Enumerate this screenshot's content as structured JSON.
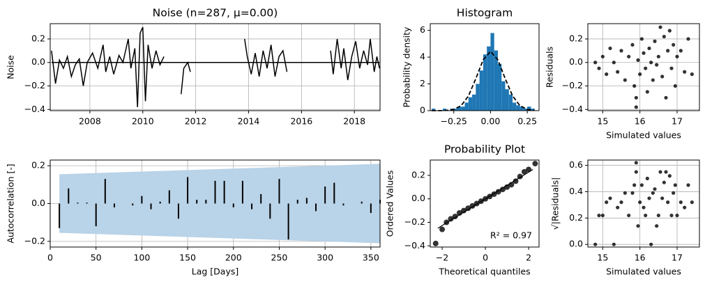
{
  "chart_data": [
    {
      "type": "line",
      "title": "Noise (n=287, μ=0.00)",
      "ylabel": "Noise",
      "color": "#000000",
      "grid": true,
      "xlim": [
        2006.5,
        2018.97
      ],
      "xticks": [
        2008,
        2010,
        2012,
        2014,
        2016,
        2018
      ],
      "ylim": [
        -0.41,
        0.33
      ],
      "yticks": [
        {
          "value": -0.4,
          "label": "−0.4"
        },
        {
          "value": -0.2,
          "label": "−0.2"
        },
        {
          "value": 0,
          "label": "0.0"
        },
        {
          "value": 0.2,
          "label": "0.2"
        }
      ],
      "x": [
        2006.55,
        2006.7,
        2006.85,
        2007.0,
        2007.15,
        2007.3,
        2007.45,
        2007.6,
        2007.75,
        2007.9,
        2008.1,
        2008.3,
        2008.5,
        2008.6,
        2008.75,
        2008.9,
        2009.1,
        2009.25,
        2009.45,
        2009.55,
        2009.7,
        2009.8,
        2009.9,
        2010.0,
        2010.1,
        2010.2,
        2010.35,
        2010.5,
        2010.65,
        2010.8,
        2011.1,
        2011.45,
        2011.55,
        2011.7,
        2011.8,
        2012.8,
        2013.85,
        2013.95,
        2014.1,
        2014.25,
        2014.4,
        2014.55,
        2014.7,
        2014.85,
        2015.0,
        2015.15,
        2015.3,
        2015.45,
        2016.3,
        2017.1,
        2017.2,
        2017.35,
        2017.5,
        2017.6,
        2017.75,
        2017.9,
        2018.05,
        2018.2,
        2018.35,
        2018.5,
        2018.6,
        2018.75,
        2018.85,
        2018.95
      ],
      "values": [
        0.1,
        -0.18,
        0.02,
        -0.05,
        0.05,
        -0.12,
        -0.02,
        0.03,
        -0.2,
        0.0,
        0.08,
        -0.05,
        0.15,
        -0.08,
        0.05,
        -0.1,
        0.06,
        0.0,
        0.2,
        -0.05,
        0.12,
        -0.38,
        0.25,
        0.3,
        -0.33,
        0.15,
        -0.05,
        0.1,
        -0.02,
        0.05,
        null,
        -0.27,
        -0.05,
        0.0,
        -0.08,
        null,
        0.2,
        0.05,
        -0.1,
        0.08,
        -0.12,
        0.1,
        -0.05,
        0.15,
        -0.12,
        0.05,
        0.1,
        -0.08,
        null,
        0.1,
        -0.1,
        0.2,
        -0.05,
        0.12,
        -0.15,
        0.05,
        0.18,
        -0.05,
        0.1,
        -0.02,
        0.2,
        -0.08,
        0.05,
        -0.05
      ]
    },
    {
      "type": "histogram",
      "title": "Histogram",
      "ylabel": "Probability density",
      "color": "#1f77b4",
      "curve_color": "#000000",
      "grid": false,
      "xlim": [
        -0.41,
        0.33
      ],
      "xticks": [
        {
          "value": -0.25,
          "label": "−0.25"
        },
        {
          "value": 0,
          "label": "0.00"
        },
        {
          "value": 0.25,
          "label": "0.25"
        }
      ],
      "ylim": [
        0,
        6.5
      ],
      "yticks": [
        0,
        2,
        4,
        6
      ],
      "bins": [
        -0.4,
        -0.375,
        -0.35,
        -0.325,
        -0.3,
        -0.275,
        -0.25,
        -0.225,
        -0.2,
        -0.175,
        -0.15,
        -0.125,
        -0.1,
        -0.075,
        -0.05,
        -0.025,
        0,
        0.025,
        0.05,
        0.075,
        0.1,
        0.125,
        0.15,
        0.175,
        0.2,
        0.225,
        0.25,
        0.275,
        0.3
      ],
      "values": [
        0.15,
        0,
        0,
        0.15,
        0,
        0.15,
        0.15,
        0.3,
        0.3,
        0.6,
        1.0,
        1.2,
        2.0,
        3.0,
        4.2,
        4.8,
        5.8,
        4.5,
        3.5,
        2.2,
        1.6,
        1.2,
        0.6,
        0.4,
        0.3,
        0.15,
        0.3,
        0.15
      ],
      "curve": {
        "x": [
          -0.4,
          -0.35,
          -0.3,
          -0.25,
          -0.2,
          -0.15,
          -0.1,
          -0.05,
          0,
          0.05,
          0.1,
          0.15,
          0.2,
          0.25,
          0.3
        ],
        "values": [
          0.0,
          0.0,
          0.02,
          0.09,
          0.37,
          1.1,
          2.39,
          3.8,
          4.43,
          3.8,
          2.39,
          1.1,
          0.37,
          0.09,
          0.02
        ]
      }
    },
    {
      "type": "scatter",
      "xlabel": "Simulated values",
      "ylabel": "Residuals",
      "color": "#000000",
      "grid": true,
      "xlim": [
        14.6,
        17.6
      ],
      "xticks": [
        15,
        16,
        17
      ],
      "ylim": [
        -0.41,
        0.33
      ],
      "yticks": [
        {
          "value": -0.4,
          "label": "−0.4"
        },
        {
          "value": -0.2,
          "label": "−0.2"
        },
        {
          "value": 0,
          "label": "0.0"
        },
        {
          "value": 0.2,
          "label": "0.2"
        }
      ],
      "x": [
        14.8,
        14.9,
        15.0,
        15.1,
        15.2,
        15.3,
        15.4,
        15.5,
        15.6,
        15.7,
        15.8,
        15.85,
        15.9,
        15.95,
        16.0,
        16.05,
        16.1,
        16.15,
        16.2,
        16.25,
        16.3,
        16.35,
        16.4,
        16.45,
        16.5,
        16.55,
        16.6,
        16.65,
        16.7,
        16.75,
        16.8,
        16.85,
        16.9,
        16.95,
        17.0,
        17.1,
        17.2,
        17.3,
        17.4,
        15.9
      ],
      "values": [
        0.0,
        -0.05,
        0.05,
        -0.1,
        0.12,
        0.0,
        -0.08,
        0.1,
        -0.15,
        0.05,
        0.15,
        -0.2,
        -0.38,
        0.02,
        -0.1,
        0.2,
        0.08,
        -0.05,
        -0.25,
        0.12,
        0.0,
        -0.15,
        0.18,
        -0.02,
        0.05,
        0.3,
        -0.12,
        0.22,
        -0.3,
        0.1,
        0.27,
        -0.05,
        0.15,
        -0.2,
        0.05,
        0.1,
        -0.08,
        0.2,
        -0.1,
        -0.3
      ]
    },
    {
      "type": "stem",
      "xlabel": "Lag [Days]",
      "ylabel": "Autocorrelation [-]",
      "color": "#000000",
      "band_color": "#b9d3e8",
      "grid": true,
      "xlim": [
        0,
        360
      ],
      "xticks": [
        0,
        50,
        100,
        150,
        200,
        250,
        300,
        350
      ],
      "ylim": [
        -0.23,
        0.23
      ],
      "yticks": [
        {
          "value": -0.2,
          "label": "−0.2"
        },
        {
          "value": 0,
          "label": "0.0"
        },
        {
          "value": 0.2,
          "label": "0.2"
        }
      ],
      "x": [
        10,
        20,
        30,
        40,
        50,
        60,
        70,
        80,
        90,
        100,
        110,
        120,
        130,
        140,
        150,
        160,
        170,
        180,
        190,
        200,
        210,
        220,
        230,
        240,
        250,
        260,
        270,
        280,
        290,
        300,
        310,
        320,
        330,
        340,
        350,
        360
      ],
      "values": [
        -0.13,
        0.08,
        0.005,
        0.005,
        -0.12,
        0.13,
        -0.02,
        0.0,
        -0.01,
        0.04,
        -0.03,
        0.01,
        0.07,
        -0.08,
        0.14,
        0.02,
        0.02,
        0.12,
        0.12,
        -0.02,
        0.12,
        -0.03,
        0.05,
        -0.08,
        0.13,
        -0.19,
        0.02,
        0.03,
        -0.04,
        0.09,
        0.11,
        -0.01,
        0.0,
        0.01,
        -0.05,
        0.02
      ],
      "band": {
        "x": [
          10,
          360
        ],
        "upper": [
          0.155,
          0.21
        ],
        "lower": [
          -0.155,
          -0.21
        ]
      }
    },
    {
      "type": "probplot",
      "title": "Probability Plot",
      "xlabel": "Theoretical quantiles",
      "ylabel": "Ordered Values",
      "annotation": "R² = 0.97",
      "color": "#000000",
      "grid": false,
      "xlim": [
        -2.55,
        2.48
      ],
      "xticks": [
        {
          "value": -2,
          "label": "−2"
        },
        0,
        2
      ],
      "ylim": [
        -0.41,
        0.33
      ],
      "yticks": [
        {
          "value": -0.4,
          "label": "−0.4"
        },
        {
          "value": -0.2,
          "label": "−0.2"
        },
        {
          "value": 0,
          "label": "0.0"
        },
        {
          "value": 0.2,
          "label": "0.2"
        }
      ],
      "x": [
        -2.3,
        -2.0,
        -1.8,
        -1.6,
        -1.4,
        -1.2,
        -1.0,
        -0.8,
        -0.6,
        -0.4,
        -0.2,
        0,
        0.2,
        0.4,
        0.6,
        0.8,
        1.0,
        1.2,
        1.4,
        1.6,
        1.8,
        2.0,
        2.3
      ],
      "values": [
        -0.38,
        -0.26,
        -0.2,
        -0.17,
        -0.15,
        -0.12,
        -0.1,
        -0.08,
        -0.06,
        -0.04,
        -0.02,
        0,
        0.02,
        0.04,
        0.06,
        0.08,
        0.1,
        0.12,
        0.15,
        0.19,
        0.23,
        0.25,
        0.3
      ],
      "fit": {
        "x": [
          -2.2,
          2.2
        ],
        "values": [
          -0.25,
          0.25
        ]
      }
    },
    {
      "type": "scatter",
      "xlabel": "Simulated values",
      "ylabel": "√|Residuals|",
      "color": "#000000",
      "grid": true,
      "xlim": [
        14.6,
        17.6
      ],
      "xticks": [
        15,
        16,
        17
      ],
      "ylim": [
        -0.02,
        0.64
      ],
      "yticks": [
        {
          "value": 0,
          "label": "0.0"
        },
        {
          "value": 0.2,
          "label": "0.2"
        },
        {
          "value": 0.4,
          "label": "0.4"
        },
        {
          "value": 0.6,
          "label": "0.6"
        }
      ],
      "x": [
        14.8,
        14.9,
        15.0,
        15.1,
        15.2,
        15.3,
        15.4,
        15.5,
        15.6,
        15.7,
        15.8,
        15.85,
        15.9,
        15.95,
        16.0,
        16.05,
        16.1,
        16.15,
        16.2,
        16.25,
        16.3,
        16.35,
        16.4,
        16.45,
        16.5,
        16.55,
        16.6,
        16.65,
        16.7,
        16.75,
        16.8,
        16.85,
        16.9,
        16.95,
        17.0,
        17.1,
        17.2,
        17.3,
        17.4,
        15.9
      ],
      "values": [
        0.0,
        0.22,
        0.22,
        0.32,
        0.35,
        0.0,
        0.28,
        0.32,
        0.39,
        0.22,
        0.39,
        0.45,
        0.62,
        0.14,
        0.32,
        0.45,
        0.28,
        0.22,
        0.5,
        0.35,
        0.0,
        0.39,
        0.42,
        0.14,
        0.22,
        0.55,
        0.35,
        0.47,
        0.55,
        0.32,
        0.52,
        0.22,
        0.39,
        0.45,
        0.22,
        0.32,
        0.28,
        0.45,
        0.32,
        0.55
      ]
    }
  ]
}
